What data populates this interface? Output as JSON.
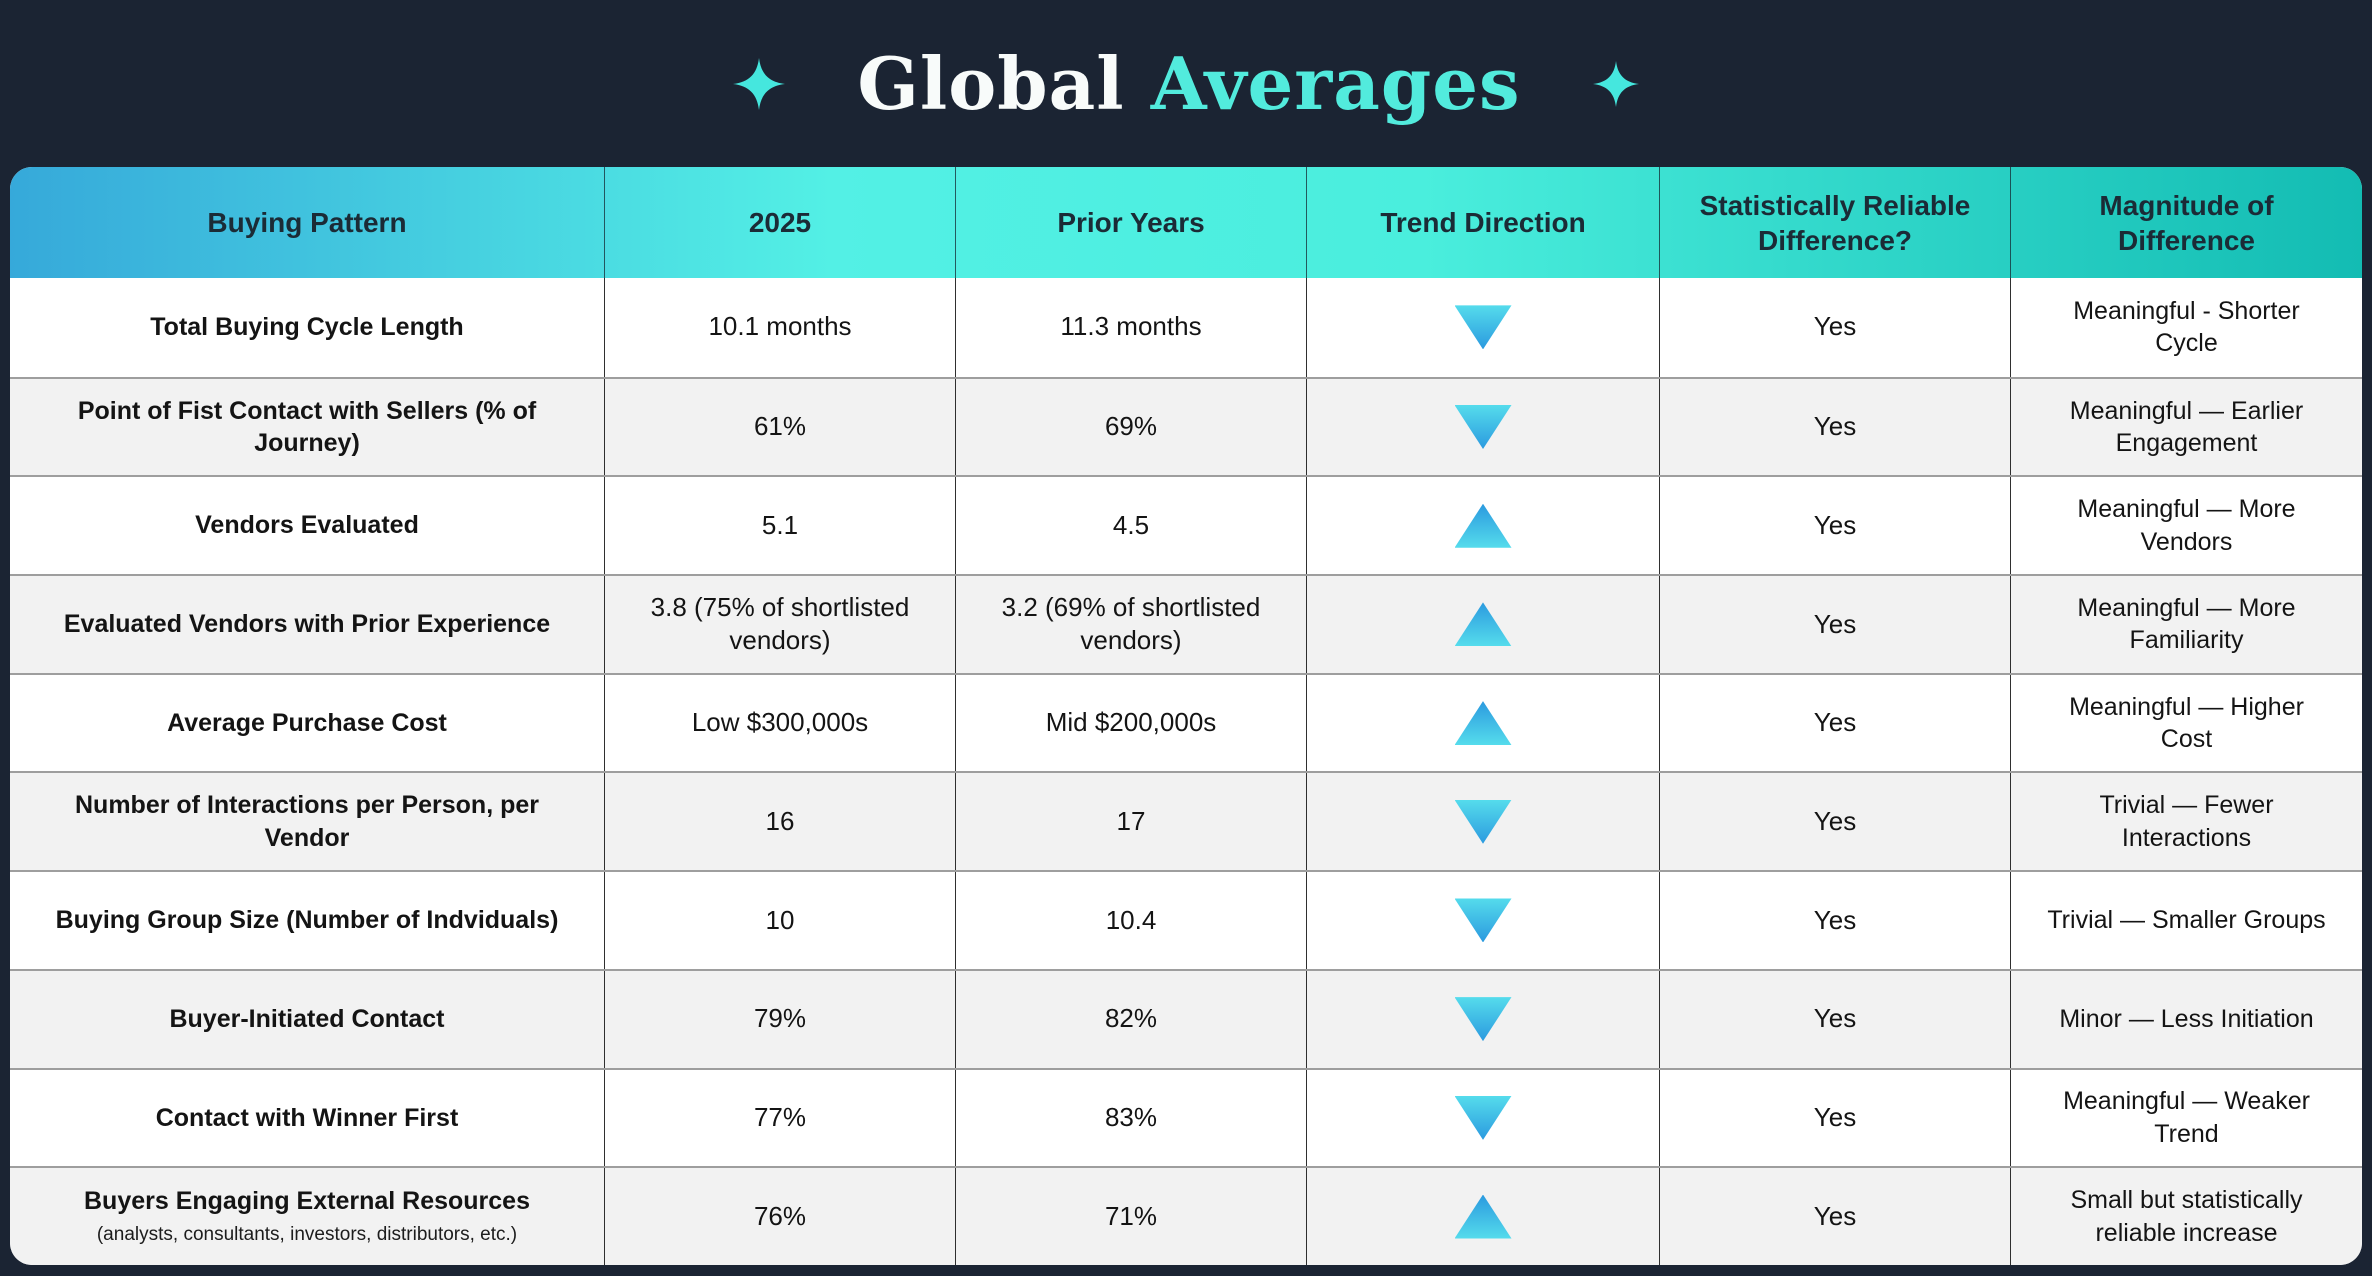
{
  "page": {
    "background_color": "#1b2433",
    "accent_color": "#52ebdd"
  },
  "title": {
    "part1": "Global",
    "part2": "Averages",
    "sparkle_color": "#45e7de"
  },
  "colors": {
    "header_gradient_left": "#36a9da",
    "header_gradient_middle": "#53f0e5",
    "header_gradient_right": "#13bcb3",
    "arrow_cyan": "#55dcec",
    "arrow_blue": "#2b9adf",
    "row_alt_background": "#f2f2f2",
    "row_background": "#ffffff"
  },
  "chart_data": {
    "type": "table",
    "title": "Global Averages",
    "columns": [
      "Buying Pattern",
      "2025",
      "Prior Years",
      "Trend Direction",
      "Statistically Reliable Difference?",
      "Magnitude of Difference"
    ],
    "rows": [
      {
        "pattern": "Total Buying Cycle Length",
        "sub": "",
        "2025": "10.1 months",
        "prior_years": "11.3 months",
        "trend_direction": "down",
        "reliable": "Yes",
        "magnitude": "Meaningful - Shorter Cycle"
      },
      {
        "pattern": "Point of Fist Contact with Sellers (% of Journey)",
        "sub": "",
        "2025": "61%",
        "prior_years": "69%",
        "trend_direction": "down",
        "reliable": "Yes",
        "magnitude": "Meaningful — Earlier Engagement"
      },
      {
        "pattern": "Vendors Evaluated",
        "sub": "",
        "2025": "5.1",
        "prior_years": "4.5",
        "trend_direction": "up",
        "reliable": "Yes",
        "magnitude": "Meaningful — More Vendors"
      },
      {
        "pattern": "Evaluated Vendors with Prior Experience",
        "sub": "",
        "2025": "3.8 (75% of shortlisted vendors)",
        "prior_years": "3.2 (69% of shortlisted vendors)",
        "trend_direction": "up",
        "reliable": "Yes",
        "magnitude": "Meaningful — More Familiarity"
      },
      {
        "pattern": "Average Purchase Cost",
        "sub": "",
        "2025": "Low $300,000s",
        "prior_years": "Mid $200,000s",
        "trend_direction": "up",
        "reliable": "Yes",
        "magnitude": "Meaningful — Higher Cost"
      },
      {
        "pattern": "Number of Interactions per Person, per Vendor",
        "sub": "",
        "2025": "16",
        "prior_years": "17",
        "trend_direction": "down",
        "reliable": "Yes",
        "magnitude": "Trivial — Fewer Interactions"
      },
      {
        "pattern": "Buying Group Size (Number of Indviduals)",
        "sub": "",
        "2025": "10",
        "prior_years": "10.4",
        "trend_direction": "down",
        "reliable": "Yes",
        "magnitude": "Trivial — Smaller Groups"
      },
      {
        "pattern": "Buyer-Initiated Contact",
        "sub": "",
        "2025": "79%",
        "prior_years": "82%",
        "trend_direction": "down",
        "reliable": "Yes",
        "magnitude": "Minor — Less Initiation"
      },
      {
        "pattern": "Contact with Winner First",
        "sub": "",
        "2025": "77%",
        "prior_years": "83%",
        "trend_direction": "down",
        "reliable": "Yes",
        "magnitude": "Meaningful — Weaker Trend"
      },
      {
        "pattern": "Buyers Engaging External Resources",
        "sub": "(analysts, consultants, investors, distributors, etc.)",
        "2025": "76%",
        "prior_years": "71%",
        "trend_direction": "up",
        "reliable": "Yes",
        "magnitude": "Small but statistically reliable increase"
      }
    ]
  }
}
